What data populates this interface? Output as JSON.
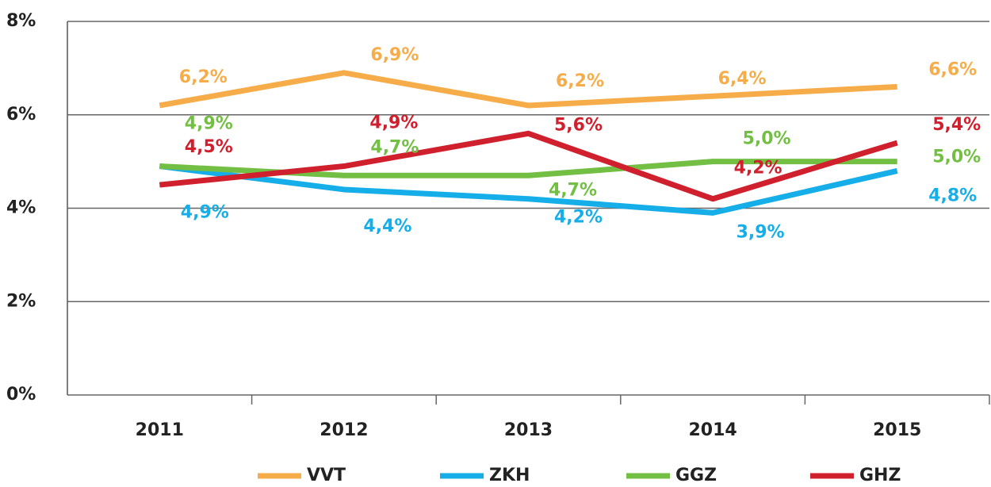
{
  "chart_data": {
    "type": "line",
    "categories": [
      "2011",
      "2012",
      "2013",
      "2014",
      "2015"
    ],
    "series": [
      {
        "name": "VVT",
        "color": "#f7ac4a",
        "values": [
          6.2,
          6.9,
          6.2,
          6.4,
          6.6
        ],
        "value_labels": [
          "6,2%",
          "6,9%",
          "6,2%",
          "6,4%",
          "6,6%"
        ]
      },
      {
        "name": "ZKH",
        "color": "#16aee9",
        "values": [
          4.9,
          4.4,
          4.2,
          3.9,
          4.8
        ],
        "value_labels": [
          "4,9%",
          "4,4%",
          "4,2%",
          "3,9%",
          "4,8%"
        ]
      },
      {
        "name": "GGZ",
        "color": "#72bf44",
        "values": [
          4.9,
          4.7,
          4.7,
          5.0,
          5.0
        ],
        "value_labels": [
          "4,9%",
          "4,7%",
          "4,7%",
          "5,0%",
          "5,0%"
        ]
      },
      {
        "name": "GHZ",
        "color": "#d0202e",
        "values": [
          4.5,
          4.9,
          5.6,
          4.2,
          5.4
        ],
        "value_labels": [
          "4,5%",
          "4,9%",
          "5,6%",
          "4,2%",
          "5,4%"
        ]
      }
    ],
    "ylim": [
      0,
      8
    ],
    "yticks": [
      {
        "value": 0,
        "label": "0%"
      },
      {
        "value": 2,
        "label": "2%"
      },
      {
        "value": 4,
        "label": "4%"
      },
      {
        "value": 6,
        "label": "6%"
      },
      {
        "value": 8,
        "label": "8%"
      }
    ],
    "grid": true,
    "legend": "bottom"
  }
}
